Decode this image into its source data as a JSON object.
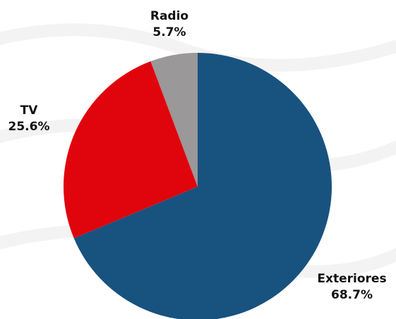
{
  "chart_data": {
    "type": "pie",
    "title": "",
    "slices": [
      {
        "label": "Exteriores",
        "value": 68.7,
        "value_label": "68.7%",
        "color": "#18527f"
      },
      {
        "label": "TV",
        "value": 25.6,
        "value_label": "25.6%",
        "color": "#e0040c"
      },
      {
        "label": "Radio",
        "value": 5.7,
        "value_label": "5.7%",
        "color": "#9a9898"
      }
    ],
    "start_angle": "12 o'clock",
    "direction": "clockwise",
    "legend": "none",
    "grid": false
  }
}
